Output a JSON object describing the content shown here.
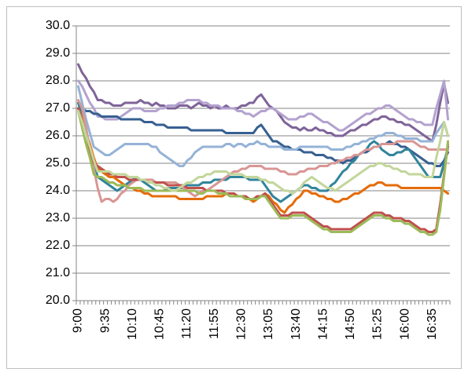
{
  "chart_data": {
    "type": "line",
    "categories": [
      "9:00",
      null,
      null,
      null,
      null,
      null,
      null,
      "9:35",
      null,
      null,
      null,
      null,
      null,
      null,
      "10:10",
      null,
      null,
      null,
      null,
      null,
      null,
      "10:45",
      null,
      null,
      null,
      null,
      null,
      null,
      "11:20",
      null,
      null,
      null,
      null,
      null,
      null,
      "11:55",
      null,
      null,
      null,
      null,
      null,
      null,
      "12:30",
      null,
      null,
      null,
      null,
      null,
      null,
      "13:05",
      null,
      null,
      null,
      null,
      null,
      null,
      "13:40",
      null,
      null,
      null,
      null,
      null,
      null,
      "14:15",
      null,
      null,
      null,
      null,
      null,
      null,
      "14:50",
      null,
      null,
      null,
      null,
      null,
      null,
      "15:25",
      null,
      null,
      null,
      null,
      null,
      null,
      "16:00",
      null,
      null,
      null,
      null,
      null,
      null,
      "16:35",
      null,
      null,
      null,
      null
    ],
    "ylim": [
      20,
      30
    ],
    "yticks": [
      {
        "value": 20,
        "label": "20.0"
      },
      {
        "value": 21,
        "label": "21.0"
      },
      {
        "value": 22,
        "label": "22.0"
      },
      {
        "value": 23,
        "label": "23.0"
      },
      {
        "value": 24,
        "label": "24.0"
      },
      {
        "value": 25,
        "label": "25.0"
      },
      {
        "value": 26,
        "label": "26.0"
      },
      {
        "value": 27,
        "label": "27.0"
      },
      {
        "value": 28,
        "label": "28.0"
      },
      {
        "value": 29,
        "label": "29.0"
      },
      {
        "value": 30,
        "label": "30.0"
      }
    ],
    "grid": true,
    "series": [
      {
        "color": "#7f6499",
        "values": [
          28.6,
          28.3,
          28.1,
          27.8,
          27.6,
          27.3,
          27.3,
          27.2,
          27.2,
          27.1,
          27.1,
          27.1,
          27.2,
          27.2,
          27.2,
          27.2,
          27.3,
          27.2,
          27.2,
          27.1,
          27.2,
          27.1,
          27.1,
          27.0,
          27.0,
          27.0,
          27.1,
          27.1,
          27.1,
          27.0,
          27.1,
          27.2,
          27.1,
          27.1,
          27.0,
          27.1,
          27.0,
          27.0,
          27.1,
          27.0,
          27.0,
          27.0,
          27.1,
          27.1,
          27.2,
          27.2,
          27.4,
          27.5,
          27.3,
          27.1,
          27.0,
          26.9,
          26.7,
          26.5,
          26.4,
          26.3,
          26.3,
          26.2,
          26.3,
          26.2,
          26.2,
          26.3,
          26.2,
          26.2,
          26.1,
          26.1,
          26.0,
          26.0,
          26.0,
          26.1,
          26.2,
          26.2,
          26.3,
          26.4,
          26.4,
          26.5,
          26.6,
          26.6,
          26.7,
          26.7,
          26.6,
          26.6,
          26.5,
          26.5,
          26.4,
          26.4,
          26.3,
          26.2,
          26.1,
          26.0,
          25.9,
          25.8,
          26.4,
          27.2,
          27.9,
          27.2
        ]
      },
      {
        "color": "#b3a2cf",
        "values": [
          28.0,
          27.8,
          27.5,
          27.2,
          27.0,
          26.7,
          26.7,
          26.6,
          26.6,
          26.6,
          26.6,
          26.7,
          26.8,
          26.9,
          27.0,
          27.0,
          27.0,
          26.9,
          26.9,
          26.9,
          26.9,
          27.0,
          27.0,
          27.1,
          27.1,
          27.1,
          27.2,
          27.2,
          27.3,
          27.3,
          27.3,
          27.3,
          27.2,
          27.2,
          27.1,
          27.1,
          27.1,
          27.0,
          27.0,
          27.0,
          27.0,
          26.9,
          26.9,
          26.8,
          26.8,
          26.7,
          26.8,
          26.9,
          26.9,
          27.0,
          27.0,
          26.9,
          26.8,
          26.7,
          26.6,
          26.6,
          26.6,
          26.7,
          26.7,
          26.8,
          26.8,
          26.7,
          26.6,
          26.5,
          26.5,
          26.4,
          26.3,
          26.2,
          26.2,
          26.3,
          26.4,
          26.5,
          26.6,
          26.7,
          26.8,
          26.8,
          26.9,
          27.0,
          27.0,
          27.1,
          27.1,
          27.0,
          26.9,
          26.8,
          26.7,
          26.6,
          26.6,
          26.5,
          26.5,
          26.4,
          26.4,
          26.4,
          27.0,
          27.5,
          28.0,
          26.6
        ]
      },
      {
        "color": "#376092",
        "values": [
          27.0,
          27.0,
          26.9,
          26.9,
          26.8,
          26.8,
          26.7,
          26.7,
          26.7,
          26.7,
          26.7,
          26.6,
          26.6,
          26.6,
          26.6,
          26.6,
          26.6,
          26.5,
          26.5,
          26.5,
          26.4,
          26.4,
          26.4,
          26.3,
          26.3,
          26.3,
          26.3,
          26.3,
          26.3,
          26.2,
          26.2,
          26.2,
          26.2,
          26.2,
          26.2,
          26.2,
          26.2,
          26.2,
          26.1,
          26.1,
          26.1,
          26.1,
          26.1,
          26.1,
          26.1,
          26.1,
          26.3,
          26.4,
          26.2,
          26.0,
          25.8,
          25.8,
          25.7,
          25.6,
          25.6,
          25.5,
          25.5,
          25.5,
          25.4,
          25.4,
          25.4,
          25.3,
          25.3,
          25.3,
          25.2,
          25.2,
          25.1,
          25.1,
          25.0,
          25.1,
          25.1,
          25.2,
          25.3,
          25.4,
          25.4,
          25.5,
          25.6,
          25.6,
          25.7,
          25.7,
          25.8,
          25.7,
          25.7,
          25.6,
          25.6,
          25.5,
          25.4,
          25.3,
          25.2,
          25.1,
          25.0,
          25.0,
          24.9,
          24.9,
          25.1,
          25.4
        ]
      },
      {
        "color": "#95b3d7",
        "values": [
          27.8,
          27.2,
          26.6,
          26.1,
          25.6,
          25.5,
          25.4,
          25.3,
          25.3,
          25.4,
          25.5,
          25.6,
          25.7,
          25.7,
          25.7,
          25.7,
          25.7,
          25.7,
          25.7,
          25.6,
          25.6,
          25.4,
          25.3,
          25.2,
          25.1,
          25.0,
          24.9,
          24.9,
          25.1,
          25.2,
          25.4,
          25.5,
          25.6,
          25.6,
          25.6,
          25.6,
          25.6,
          25.6,
          25.7,
          25.7,
          25.6,
          25.7,
          25.7,
          25.6,
          25.7,
          25.7,
          25.8,
          25.7,
          25.7,
          25.6,
          25.6,
          25.6,
          25.6,
          25.5,
          25.5,
          25.5,
          25.5,
          25.6,
          25.6,
          25.6,
          25.6,
          25.6,
          25.6,
          25.6,
          25.6,
          25.5,
          25.5,
          25.5,
          25.5,
          25.6,
          25.6,
          25.7,
          25.7,
          25.8,
          25.8,
          25.9,
          25.9,
          26.0,
          26.0,
          26.1,
          26.1,
          26.1,
          26.0,
          26.0,
          25.9,
          25.9,
          25.9,
          25.9,
          25.8,
          25.8,
          25.8,
          25.8,
          26.1,
          26.3,
          26.5,
          26.0
        ]
      },
      {
        "color": "#31859c",
        "values": [
          27.2,
          26.7,
          26.1,
          25.6,
          25.0,
          24.5,
          24.4,
          24.3,
          24.2,
          24.1,
          24.0,
          24.1,
          24.2,
          24.3,
          24.4,
          24.5,
          24.4,
          24.3,
          24.2,
          24.1,
          24.0,
          24.0,
          24.0,
          24.1,
          24.1,
          24.1,
          24.1,
          24.1,
          24.2,
          24.2,
          24.2,
          24.2,
          24.3,
          24.3,
          24.3,
          24.4,
          24.4,
          24.4,
          24.4,
          24.5,
          24.5,
          24.5,
          24.5,
          24.5,
          24.4,
          24.4,
          24.4,
          24.4,
          24.2,
          24.0,
          23.8,
          23.7,
          23.6,
          23.7,
          23.8,
          23.9,
          24.0,
          24.1,
          24.2,
          24.2,
          24.1,
          24.1,
          24.0,
          24.0,
          24.0,
          24.2,
          24.3,
          24.5,
          24.7,
          24.8,
          25.0,
          25.1,
          25.3,
          25.4,
          25.5,
          25.7,
          25.8,
          25.7,
          25.5,
          25.4,
          25.3,
          25.3,
          25.4,
          25.4,
          25.5,
          25.5,
          25.3,
          25.1,
          24.9,
          24.7,
          24.5,
          24.5,
          24.5,
          24.5,
          25.0,
          25.6
        ]
      },
      {
        "color": "#e46c0a",
        "values": [
          27.0,
          26.6,
          26.1,
          25.7,
          25.2,
          24.8,
          24.7,
          24.6,
          24.5,
          24.5,
          24.4,
          24.3,
          24.2,
          24.1,
          24.1,
          24.0,
          24.0,
          23.9,
          23.9,
          23.8,
          23.8,
          23.8,
          23.8,
          23.8,
          23.8,
          23.8,
          23.7,
          23.7,
          23.7,
          23.7,
          23.7,
          23.7,
          23.7,
          23.8,
          23.8,
          23.8,
          23.8,
          23.8,
          23.9,
          23.9,
          23.9,
          23.8,
          23.8,
          23.7,
          23.7,
          23.6,
          23.7,
          23.8,
          23.9,
          23.8,
          23.6,
          23.5,
          23.3,
          23.2,
          23.4,
          23.5,
          23.7,
          23.8,
          24.0,
          24.0,
          23.9,
          23.9,
          23.8,
          23.8,
          23.7,
          23.7,
          23.6,
          23.6,
          23.7,
          23.7,
          23.8,
          23.9,
          23.9,
          24.0,
          24.1,
          24.2,
          24.2,
          24.3,
          24.3,
          24.2,
          24.2,
          24.2,
          24.2,
          24.1,
          24.1,
          24.1,
          24.1,
          24.1,
          24.1,
          24.1,
          24.1,
          24.1,
          24.1,
          24.1,
          24.0,
          23.9
        ]
      },
      {
        "color": "#d99694",
        "values": [
          27.3,
          27.0,
          26.3,
          25.5,
          24.8,
          24.1,
          23.6,
          23.7,
          23.7,
          23.6,
          23.7,
          23.9,
          24.0,
          24.2,
          24.3,
          24.4,
          24.4,
          24.4,
          24.4,
          24.4,
          24.3,
          24.3,
          24.3,
          24.3,
          24.3,
          24.3,
          24.2,
          24.1,
          24.0,
          23.9,
          23.8,
          23.9,
          24.0,
          24.0,
          24.1,
          24.2,
          24.3,
          24.4,
          24.5,
          24.6,
          24.7,
          24.7,
          24.8,
          24.8,
          24.9,
          24.9,
          24.9,
          24.9,
          24.8,
          24.8,
          24.8,
          24.8,
          24.7,
          24.7,
          24.6,
          24.6,
          24.6,
          24.7,
          24.7,
          24.8,
          24.8,
          24.8,
          24.9,
          24.9,
          24.9,
          25.0,
          25.0,
          25.1,
          25.1,
          25.2,
          25.2,
          25.3,
          25.3,
          25.4,
          25.5,
          25.5,
          25.6,
          25.6,
          25.7,
          25.7,
          25.7,
          25.7,
          25.8,
          25.8,
          25.8,
          25.8,
          25.8,
          25.7,
          25.6,
          25.6,
          25.5,
          25.5,
          25.5,
          25.5,
          25.5,
          25.5
        ]
      },
      {
        "color": "#c0504d",
        "values": [
          27.0,
          26.5,
          26.0,
          25.5,
          25.0,
          24.9,
          24.8,
          24.7,
          24.6,
          24.6,
          24.5,
          24.5,
          24.5,
          24.4,
          24.4,
          24.4,
          24.4,
          24.4,
          24.3,
          24.3,
          24.3,
          24.3,
          24.3,
          24.2,
          24.2,
          24.2,
          24.2,
          24.2,
          24.1,
          24.1,
          24.1,
          24.1,
          24.1,
          24.0,
          24.0,
          24.0,
          24.0,
          24.0,
          23.9,
          23.9,
          23.9,
          23.8,
          23.8,
          23.8,
          23.7,
          23.7,
          23.8,
          23.8,
          23.9,
          23.7,
          23.5,
          23.3,
          23.1,
          23.1,
          23.1,
          23.2,
          23.2,
          23.2,
          23.2,
          23.1,
          23.0,
          22.9,
          22.8,
          22.7,
          22.7,
          22.6,
          22.6,
          22.6,
          22.6,
          22.6,
          22.6,
          22.7,
          22.8,
          22.9,
          23.0,
          23.1,
          23.2,
          23.2,
          23.2,
          23.1,
          23.1,
          23.0,
          23.0,
          23.0,
          22.9,
          22.9,
          22.8,
          22.7,
          22.6,
          22.6,
          22.5,
          22.5,
          22.6,
          23.5,
          24.6,
          25.7
        ]
      },
      {
        "color": "#9bbb59",
        "values": [
          26.9,
          26.3,
          25.7,
          25.2,
          24.6,
          24.5,
          24.5,
          24.4,
          24.3,
          24.3,
          24.2,
          24.2,
          24.2,
          24.1,
          24.1,
          24.1,
          24.1,
          24.0,
          24.0,
          24.0,
          24.0,
          24.0,
          24.0,
          24.0,
          24.0,
          24.0,
          24.0,
          24.0,
          24.0,
          24.0,
          24.0,
          23.9,
          23.9,
          24.0,
          24.0,
          24.0,
          23.9,
          23.9,
          23.9,
          23.8,
          23.8,
          23.8,
          23.8,
          23.7,
          23.7,
          23.7,
          23.7,
          23.8,
          23.8,
          23.6,
          23.4,
          23.2,
          23.0,
          23.0,
          23.0,
          23.1,
          23.1,
          23.1,
          23.1,
          23.0,
          22.9,
          22.8,
          22.7,
          22.6,
          22.6,
          22.5,
          22.5,
          22.5,
          22.5,
          22.5,
          22.5,
          22.6,
          22.7,
          22.8,
          22.9,
          23.0,
          23.1,
          23.1,
          23.1,
          23.0,
          23.0,
          22.9,
          22.9,
          22.9,
          22.8,
          22.8,
          22.7,
          22.6,
          22.5,
          22.5,
          22.4,
          22.4,
          22.5,
          23.3,
          24.5,
          25.8
        ]
      },
      {
        "color": "#c3d69b",
        "values": [
          26.9,
          26.5,
          26.0,
          25.6,
          25.1,
          24.7,
          24.7,
          24.7,
          24.7,
          24.6,
          24.6,
          24.6,
          24.6,
          24.5,
          24.5,
          24.5,
          24.4,
          24.4,
          24.3,
          24.3,
          24.2,
          24.2,
          24.1,
          24.1,
          24.0,
          24.0,
          24.1,
          24.2,
          24.3,
          24.3,
          24.4,
          24.5,
          24.5,
          24.6,
          24.6,
          24.7,
          24.7,
          24.7,
          24.7,
          24.6,
          24.6,
          24.6,
          24.6,
          24.5,
          24.5,
          24.5,
          24.5,
          24.4,
          24.4,
          24.3,
          24.3,
          24.2,
          24.1,
          24.0,
          24.0,
          23.9,
          24.0,
          24.1,
          24.3,
          24.4,
          24.5,
          24.4,
          24.3,
          24.2,
          24.1,
          24.1,
          24.0,
          24.1,
          24.2,
          24.3,
          24.4,
          24.5,
          24.6,
          24.7,
          24.8,
          24.9,
          24.9,
          25.0,
          25.0,
          24.9,
          24.9,
          24.8,
          24.8,
          24.7,
          24.7,
          24.6,
          24.6,
          24.6,
          24.6,
          24.5,
          24.5,
          24.5,
          25.2,
          25.8,
          26.5,
          26.0
        ]
      }
    ]
  }
}
